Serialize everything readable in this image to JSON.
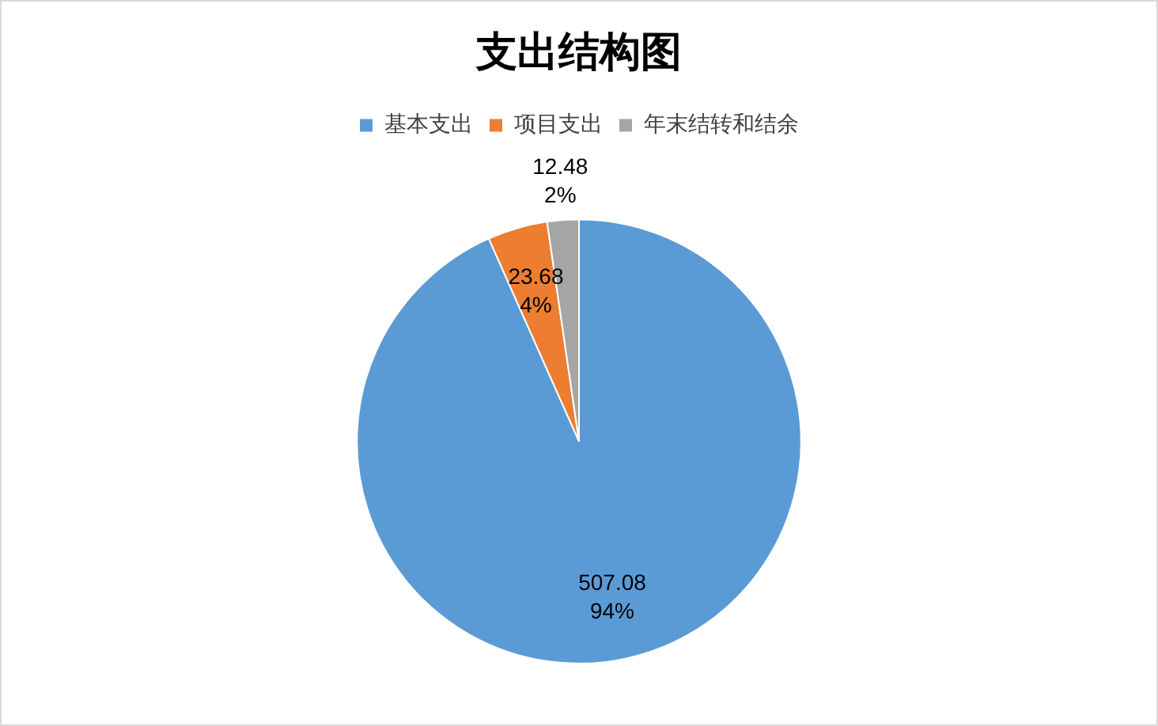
{
  "chart_data": {
    "type": "pie",
    "title": "支出结构图",
    "categories": [
      "基本支出",
      "项目支出",
      "年末结转和结余"
    ],
    "values": [
      507.08,
      23.68,
      12.48
    ],
    "colors": [
      "#5b9bd5",
      "#ed7d31",
      "#a5a5a5"
    ],
    "value_labels": [
      "507.08\n94%",
      "23.68\n4%",
      "12.48\n2%"
    ],
    "legend": "top"
  }
}
